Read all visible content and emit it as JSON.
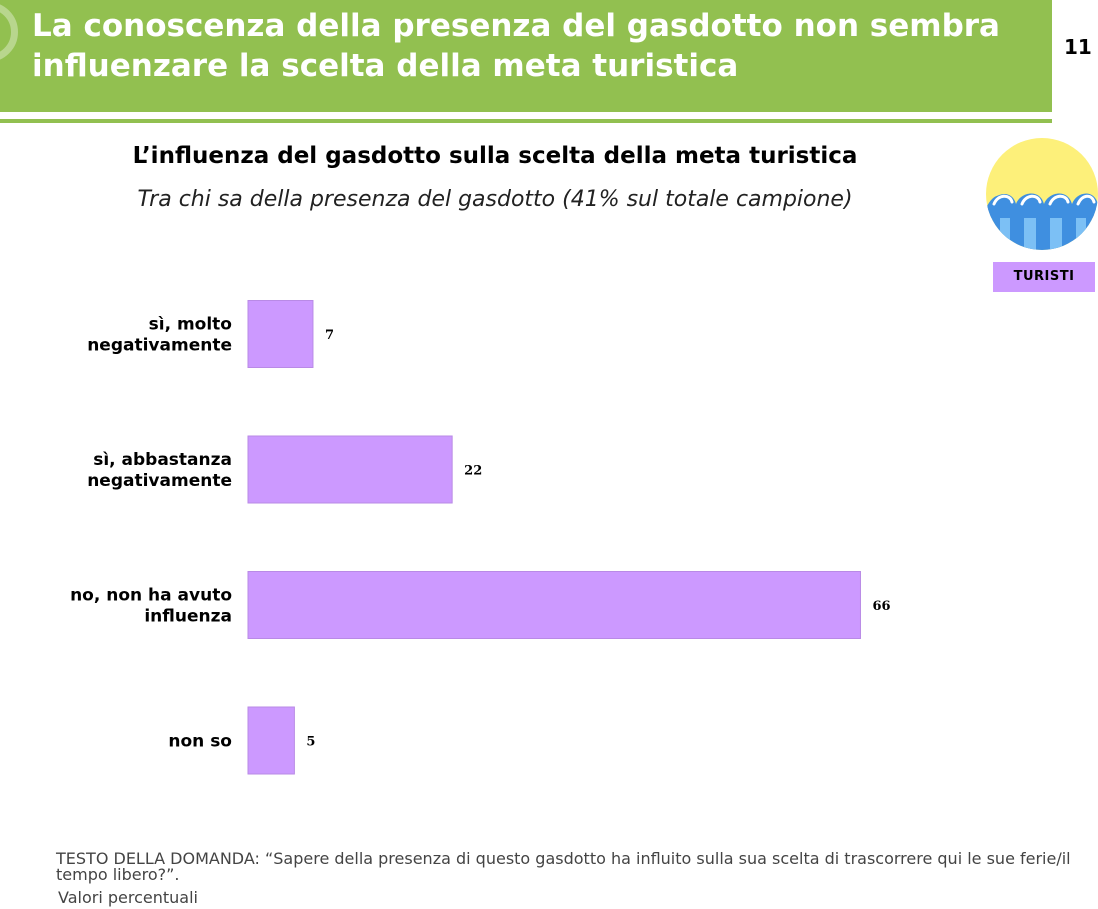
{
  "header": {
    "title": "La conoscenza della presenza del gasdotto non sembra\ninfluenzare la scelta della meta turistica",
    "page_number": "11",
    "color": "#92c050"
  },
  "badge": {
    "label": "TURISTI",
    "icon": "sea-waves-sun-icon",
    "color": "#cc99ff"
  },
  "footer": {
    "question": "TESTO DELLA DOMANDA: “Sapere della presenza di questo gasdotto ha influito sulla sua scelta di trascorrere qui le sue ferie/il tempo libero?”.",
    "note": "Valori percentuali"
  },
  "chart_data": {
    "type": "bar",
    "orientation": "horizontal",
    "title": "L’influenza del gasdotto sulla scelta della meta turistica",
    "subtitle": "Tra chi sa della presenza del gasdotto (41% sul totale campione)",
    "categories": [
      [
        "sì, molto",
        "negativamente"
      ],
      [
        "sì, abbastanza",
        "negativamente"
      ],
      [
        "no, non ha avuto",
        "influenza"
      ],
      [
        "non so"
      ]
    ],
    "values": [
      7,
      22,
      66,
      5
    ],
    "value_labels": [
      "7",
      "22",
      "66",
      "5"
    ],
    "xlim": [
      0,
      100
    ],
    "grid": false,
    "bar_color": "#cc99ff"
  }
}
